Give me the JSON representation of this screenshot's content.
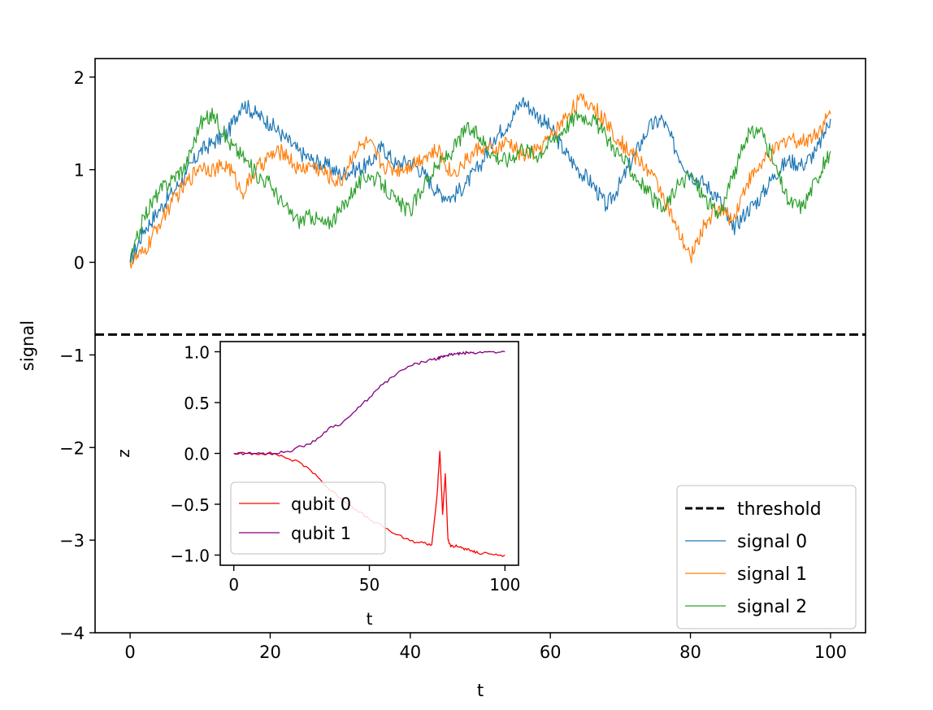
{
  "chart_data": [
    {
      "type": "line",
      "title": "",
      "xlabel": "t",
      "ylabel": "signal",
      "xlim": [
        -5,
        105
      ],
      "ylim": [
        -4,
        2.2
      ],
      "xticks": [
        0,
        20,
        40,
        60,
        80,
        100
      ],
      "yticks": [
        -4,
        -3,
        -2,
        -1,
        0,
        1,
        2
      ],
      "xtick_labels": [
        "0",
        "20",
        "40",
        "60",
        "80",
        "100"
      ],
      "ytick_labels": [
        "−4",
        "−3",
        "−2",
        "−1",
        "0",
        "1",
        "2"
      ],
      "threshold": {
        "name": "threshold",
        "value": -0.78,
        "style": "dashed",
        "color": "#000000"
      },
      "legend_position": "lower-right",
      "legend_entries": [
        "threshold",
        "signal 0",
        "signal 1",
        "signal 2"
      ],
      "x": [
        0,
        2,
        4,
        6,
        8,
        10,
        12,
        14,
        16,
        18,
        20,
        22,
        24,
        26,
        28,
        30,
        32,
        34,
        36,
        38,
        40,
        42,
        44,
        46,
        48,
        50,
        52,
        54,
        56,
        58,
        60,
        62,
        64,
        66,
        68,
        70,
        72,
        74,
        76,
        78,
        80,
        82,
        84,
        86,
        88,
        90,
        92,
        94,
        96,
        98,
        100
      ],
      "series": [
        {
          "name": "signal 0",
          "color": "#1f77b4",
          "values": [
            0.0,
            0.35,
            0.55,
            0.75,
            0.95,
            1.2,
            1.3,
            1.4,
            1.72,
            1.6,
            1.5,
            1.35,
            1.2,
            1.1,
            1.05,
            0.95,
            1.0,
            1.05,
            1.25,
            1.05,
            1.1,
            0.95,
            0.75,
            0.7,
            0.85,
            1.05,
            1.35,
            1.5,
            1.75,
            1.6,
            1.45,
            1.2,
            1.0,
            0.85,
            0.6,
            0.85,
            1.15,
            1.45,
            1.55,
            1.2,
            0.95,
            0.85,
            0.7,
            0.35,
            0.55,
            0.7,
            0.95,
            1.1,
            1.05,
            1.2,
            1.55
          ]
        },
        {
          "name": "signal 1",
          "color": "#ff7f0e",
          "values": [
            0.0,
            0.1,
            0.4,
            0.65,
            0.85,
            1.05,
            1.0,
            1.05,
            0.75,
            1.0,
            1.15,
            1.2,
            1.0,
            1.05,
            0.95,
            0.85,
            1.2,
            1.3,
            1.05,
            1.0,
            1.05,
            1.15,
            1.2,
            0.95,
            1.1,
            1.25,
            1.2,
            1.3,
            1.15,
            1.2,
            1.35,
            1.55,
            1.75,
            1.7,
            1.5,
            1.3,
            1.15,
            1.0,
            0.75,
            0.35,
            0.05,
            0.4,
            0.6,
            0.45,
            0.85,
            1.05,
            1.2,
            1.35,
            1.3,
            1.4,
            1.6
          ]
        },
        {
          "name": "signal 2",
          "color": "#2ca02c",
          "values": [
            0.0,
            0.5,
            0.75,
            0.9,
            1.05,
            1.5,
            1.6,
            1.3,
            1.15,
            0.95,
            0.85,
            0.6,
            0.45,
            0.5,
            0.4,
            0.55,
            0.8,
            0.95,
            0.85,
            0.65,
            0.55,
            0.85,
            1.05,
            1.2,
            1.45,
            1.35,
            1.15,
            1.1,
            1.25,
            1.15,
            1.3,
            1.45,
            1.6,
            1.55,
            1.35,
            1.15,
            0.95,
            0.75,
            0.55,
            0.8,
            0.95,
            0.7,
            0.5,
            0.9,
            1.35,
            1.45,
            1.05,
            0.65,
            0.6,
            0.9,
            1.2
          ]
        }
      ]
    },
    {
      "type": "line",
      "title": "",
      "xlabel": "t",
      "ylabel": "z",
      "xlim": [
        -5,
        105
      ],
      "ylim": [
        -1.1,
        1.1
      ],
      "xticks": [
        0,
        50,
        100
      ],
      "yticks": [
        -1.0,
        -0.5,
        0.0,
        0.5,
        1.0
      ],
      "xtick_labels": [
        "0",
        "50",
        "100"
      ],
      "ytick_labels": [
        "−1.0",
        "−0.5",
        "0.0",
        "0.5",
        "1.0"
      ],
      "legend_position": "lower-left",
      "legend_entries": [
        "qubit 0",
        "qubit 1"
      ],
      "x": [
        0,
        5,
        10,
        15,
        20,
        25,
        30,
        35,
        40,
        45,
        50,
        55,
        60,
        65,
        70,
        73,
        75,
        76,
        77,
        78,
        79,
        80,
        82,
        84,
        86,
        88,
        90,
        95,
        100
      ],
      "series": [
        {
          "name": "qubit 0",
          "color": "#ff0000",
          "values": [
            0.0,
            0.0,
            0.0,
            0.0,
            -0.05,
            -0.1,
            -0.2,
            -0.35,
            -0.45,
            -0.55,
            -0.65,
            -0.72,
            -0.8,
            -0.86,
            -0.88,
            -0.9,
            -0.4,
            0.02,
            -0.6,
            -0.2,
            -0.85,
            -0.92,
            -0.9,
            -0.93,
            -0.95,
            -0.96,
            -0.98,
            -0.99,
            -1.0
          ]
        },
        {
          "name": "qubit 1",
          "color": "#800080",
          "values": [
            0.0,
            0.0,
            0.0,
            0.0,
            0.02,
            0.07,
            0.12,
            0.25,
            0.3,
            0.42,
            0.55,
            0.68,
            0.78,
            0.86,
            0.9,
            0.92,
            0.93,
            0.94,
            0.95,
            0.96,
            0.97,
            0.97,
            0.98,
            0.98,
            0.99,
            0.99,
            0.99,
            1.0,
            1.0
          ]
        }
      ]
    }
  ]
}
